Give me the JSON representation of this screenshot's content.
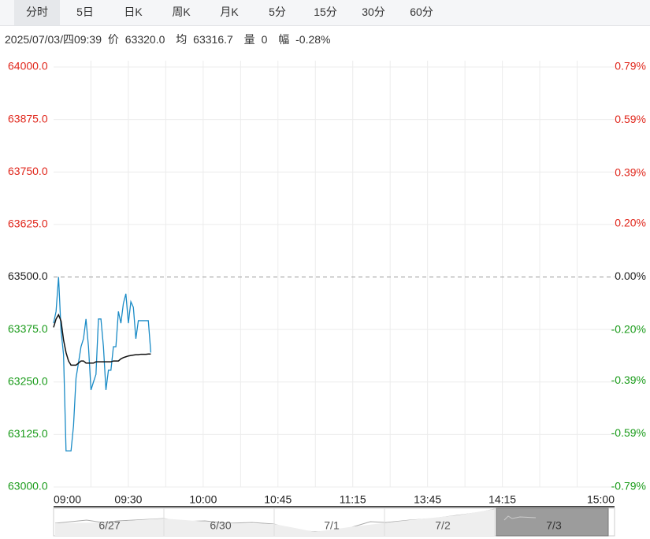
{
  "tabs": {
    "items": [
      "分时",
      "5日",
      "日K",
      "周K",
      "月K",
      "5分",
      "15分",
      "30分",
      "60分"
    ],
    "selected": 0
  },
  "info": {
    "datetime": "2025/07/03/四09:39",
    "price_label": "价",
    "price": "63320.0",
    "avg_label": "均",
    "avg": "63316.7",
    "volume_label": "量",
    "volume": "0",
    "change_label": "幅",
    "change": "-0.28%"
  },
  "chart_data": {
    "type": "line",
    "x": [
      0,
      1,
      2,
      3,
      4,
      5,
      6,
      7,
      8,
      9,
      10,
      11,
      12,
      13,
      14,
      15,
      16,
      17,
      18,
      19,
      20,
      21,
      22,
      23,
      24,
      25,
      26,
      27,
      28,
      29,
      30,
      31,
      32,
      33,
      34,
      35,
      36,
      37,
      38,
      39
    ],
    "series": [
      {
        "name": "价",
        "color": "#1a8bc6",
        "values": [
          63390,
          63418,
          63500,
          63372,
          63315,
          63086,
          63086,
          63086,
          63146,
          63259,
          63296,
          63334,
          63353,
          63400,
          63334,
          63231,
          63250,
          63268,
          63400,
          63400,
          63334,
          63231,
          63278,
          63278,
          63334,
          63334,
          63418,
          63390,
          63437,
          63460,
          63390,
          63441,
          63428,
          63353,
          63396,
          63396,
          63396,
          63396,
          63396,
          63320
        ]
      },
      {
        "name": "均",
        "color": "#111111",
        "values": [
          63380,
          63400,
          63410,
          63395,
          63350,
          63320,
          63300,
          63290,
          63290,
          63290,
          63295,
          63300,
          63300,
          63295,
          63295,
          63295,
          63295,
          63298,
          63298,
          63298,
          63298,
          63298,
          63298,
          63298,
          63300,
          63300,
          63300,
          63305,
          63308,
          63310,
          63312,
          63313,
          63314,
          63315,
          63315,
          63316,
          63316,
          63316,
          63316.5,
          63316.7
        ]
      }
    ],
    "xlim": [
      0,
      225
    ],
    "xticks": [
      {
        "value": 0,
        "label": "09:00"
      },
      {
        "value": 30,
        "label": "09:30"
      },
      {
        "value": 60,
        "label": "10:00"
      },
      {
        "value": 90,
        "label": "10:45"
      },
      {
        "value": 120,
        "label": "11:15"
      },
      {
        "value": 150,
        "label": "13:45"
      },
      {
        "value": 180,
        "label": "14:15"
      },
      {
        "value": 225,
        "label": "15:00"
      }
    ],
    "xgrid": [
      15,
      30,
      45,
      60,
      75,
      90,
      105,
      120,
      135,
      150,
      165,
      180,
      195,
      210
    ],
    "ylim": [
      63000,
      64000
    ],
    "yticks": [
      {
        "value": 64000,
        "label": "64000.0"
      },
      {
        "value": 63875,
        "label": "63875.0"
      },
      {
        "value": 63750,
        "label": "63750.0"
      },
      {
        "value": 63625,
        "label": "63625.0"
      },
      {
        "value": 63500,
        "label": "63500.0"
      },
      {
        "value": 63375,
        "label": "63375.0"
      },
      {
        "value": 63250,
        "label": "63250.0"
      },
      {
        "value": 63125,
        "label": "63125.0"
      },
      {
        "value": 63000,
        "label": "63000.0"
      }
    ],
    "y2lim": [
      -0.79,
      0.79
    ],
    "y2ticks": [
      {
        "value": 0.79,
        "label": "0.79%"
      },
      {
        "value": 0.59,
        "label": "0.59%"
      },
      {
        "value": 0.39,
        "label": "0.39%"
      },
      {
        "value": 0.2,
        "label": "0.20%"
      },
      {
        "value": 0,
        "label": "0.00%"
      },
      {
        "value": -0.2,
        "label": "-0.20%"
      },
      {
        "value": -0.39,
        "label": "-0.39%"
      },
      {
        "value": -0.59,
        "label": "-0.59%"
      },
      {
        "value": -0.79,
        "label": "-0.79%"
      }
    ],
    "prev_close": 63500,
    "up_color": "#e0261b",
    "down_color": "#1a9b1a",
    "grid": true
  },
  "navigator": {
    "dates": [
      "6/27",
      "6/30",
      "7/1",
      "7/2",
      "7/3"
    ],
    "selected": 4
  }
}
